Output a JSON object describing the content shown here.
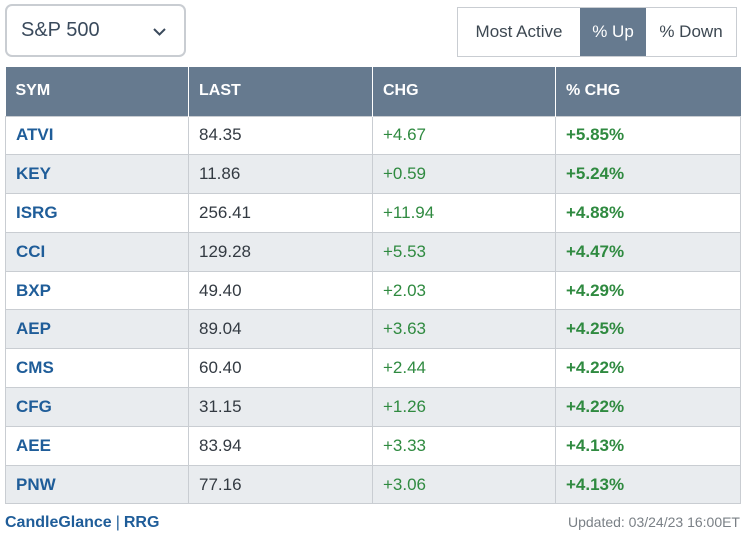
{
  "index_select": {
    "value": "S&P 500"
  },
  "tabs": [
    {
      "label": "Most Active",
      "active": false
    },
    {
      "label": "% Up",
      "active": true
    },
    {
      "label": "% Down",
      "active": false
    }
  ],
  "table": {
    "headers": [
      "SYM",
      "LAST",
      "CHG",
      "% CHG"
    ],
    "rows": [
      {
        "sym": "ATVI",
        "last": "84.35",
        "chg": "+4.67",
        "pct": "+5.85%"
      },
      {
        "sym": "KEY",
        "last": "11.86",
        "chg": "+0.59",
        "pct": "+5.24%"
      },
      {
        "sym": "ISRG",
        "last": "256.41",
        "chg": "+11.94",
        "pct": "+4.88%"
      },
      {
        "sym": "CCI",
        "last": "129.28",
        "chg": "+5.53",
        "pct": "+4.47%"
      },
      {
        "sym": "BXP",
        "last": "49.40",
        "chg": "+2.03",
        "pct": "+4.29%"
      },
      {
        "sym": "AEP",
        "last": "89.04",
        "chg": "+3.63",
        "pct": "+4.25%"
      },
      {
        "sym": "CMS",
        "last": "60.40",
        "chg": "+2.44",
        "pct": "+4.22%"
      },
      {
        "sym": "CFG",
        "last": "31.15",
        "chg": "+1.26",
        "pct": "+4.22%"
      },
      {
        "sym": "AEE",
        "last": "83.94",
        "chg": "+3.33",
        "pct": "+4.13%"
      },
      {
        "sym": "PNW",
        "last": "77.16",
        "chg": "+3.06",
        "pct": "+4.13%"
      }
    ]
  },
  "footer": {
    "link_candleglance": "CandleGlance",
    "separator": "|",
    "link_rrg": "RRG",
    "updated": "Updated: 03/24/23 16:00ET"
  },
  "colors": {
    "header_bg": "#667a8f",
    "symbol": "#1f5d99",
    "positive": "#2f8a40",
    "row_alt": "#e9ecef"
  },
  "icons": {
    "select_caret": "chevron-down-icon"
  }
}
